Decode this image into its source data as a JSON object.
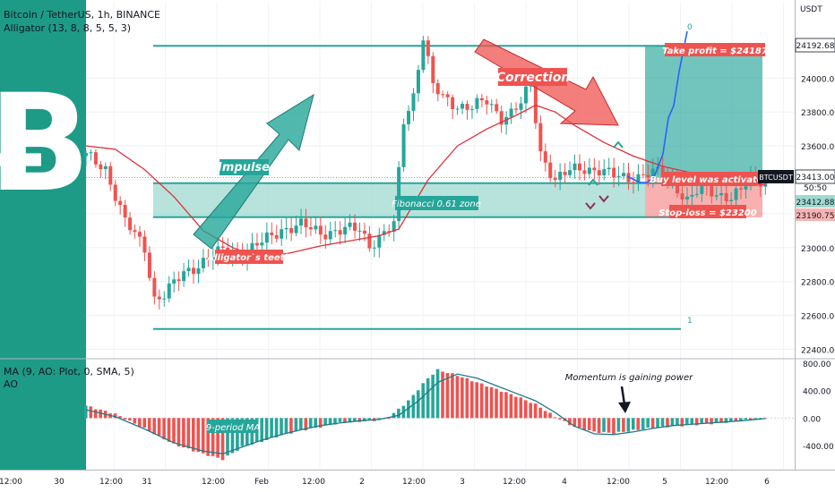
{
  "header": {
    "symbol_line": "Bitcoin / TetherUS, 1h, BINANCE",
    "indicator_line": "Alligator (13, 8, 8, 5, 5, 3)",
    "currency": "USDT"
  },
  "sub_header": {
    "line1": "MA (9, AO: Plot, 0, SMA, 5)",
    "line2": "AO"
  },
  "logo_text": "Bitcoin logo",
  "annotations": {
    "impulse": "Impulse",
    "correction": "Correction",
    "fib_zone": "Fibonacci 0.61 zone",
    "alligator_teeth": "Alligator`s teeth",
    "take_profit": "Take profit = $24187",
    "buy_level": "Buy level was activated",
    "stop_loss": "Stop-loss = $23200",
    "fib_top": "0",
    "fib_bottom": "1",
    "momentum": "Momentum is gaining power",
    "ma_label": "9-period MA"
  },
  "price_tags": {
    "top": "24192.68",
    "ticker": "BTCUSDT",
    "last": "23413.00",
    "countdown": "50:50",
    "entry": "23412.88",
    "stop": "23190.75"
  },
  "colors": {
    "teal": "#26a69a",
    "red": "#ef5350",
    "alligator": "#e0303a",
    "ma": "#1f7a8c",
    "zone": "#9fdad0"
  },
  "chart_data": [
    {
      "type": "candlestick",
      "title": "Bitcoin / TetherUS, 1h, BINANCE",
      "ylabel": "USDT",
      "ylim": [
        22350,
        24450
      ],
      "y_ticks": [
        22400,
        22600,
        22800,
        23000,
        23200,
        23400,
        23600,
        23800,
        24000
      ],
      "x_ticks": [
        "12:00",
        "30",
        "12:00",
        "31",
        "12:00",
        "Feb",
        "12:00",
        "2",
        "12:00",
        "3",
        "12:00",
        "4",
        "12:00",
        "5",
        "12:00",
        "6"
      ],
      "close_path": [
        [
          0,
          23540
        ],
        [
          4,
          23470
        ],
        [
          8,
          23150
        ],
        [
          12,
          23000
        ],
        [
          14,
          22700
        ],
        [
          16,
          22720
        ],
        [
          20,
          22850
        ],
        [
          24,
          22920
        ],
        [
          28,
          22980
        ],
        [
          32,
          22960
        ],
        [
          36,
          23030
        ],
        [
          40,
          23110
        ],
        [
          44,
          23130
        ],
        [
          48,
          23090
        ],
        [
          52,
          23100
        ],
        [
          56,
          23110
        ],
        [
          58,
          23020
        ],
        [
          60,
          23060
        ],
        [
          63,
          23130
        ],
        [
          65,
          23750
        ],
        [
          67,
          23900
        ],
        [
          69,
          24250
        ],
        [
          71,
          23950
        ],
        [
          73,
          23880
        ],
        [
          76,
          23840
        ],
        [
          79,
          23830
        ],
        [
          82,
          23860
        ],
        [
          85,
          23770
        ],
        [
          87,
          23800
        ],
        [
          89,
          23850
        ],
        [
          91,
          23960
        ],
        [
          93,
          23560
        ],
        [
          96,
          23400
        ],
        [
          99,
          23450
        ],
        [
          102,
          23470
        ],
        [
          105,
          23460
        ],
        [
          108,
          23420
        ],
        [
          111,
          23410
        ],
        [
          114,
          23430
        ],
        [
          117,
          23440
        ],
        [
          120,
          23390
        ],
        [
          123,
          23280
        ],
        [
          126,
          23350
        ],
        [
          129,
          23320
        ],
        [
          132,
          23300
        ],
        [
          134,
          23330
        ],
        [
          136,
          23410
        ],
        [
          138,
          23400
        ],
        [
          139,
          23390
        ]
      ],
      "alligator_teeth": [
        [
          0,
          23600
        ],
        [
          6,
          23580
        ],
        [
          12,
          23460
        ],
        [
          18,
          23300
        ],
        [
          24,
          23100
        ],
        [
          30,
          23000
        ],
        [
          36,
          22940
        ],
        [
          42,
          22970
        ],
        [
          48,
          23010
        ],
        [
          54,
          23040
        ],
        [
          60,
          23070
        ],
        [
          64,
          23110
        ],
        [
          70,
          23400
        ],
        [
          76,
          23600
        ],
        [
          82,
          23700
        ],
        [
          88,
          23780
        ],
        [
          92,
          23840
        ],
        [
          96,
          23800
        ],
        [
          100,
          23720
        ],
        [
          106,
          23620
        ],
        [
          112,
          23540
        ],
        [
          118,
          23480
        ],
        [
          124,
          23440
        ],
        [
          130,
          23410
        ],
        [
          136,
          23380
        ],
        [
          139,
          23370
        ]
      ],
      "fibonacci": {
        "level_0": 24190,
        "level_1": 22520,
        "zone_0_61": [
          23180,
          23380
        ]
      },
      "take_profit": 24187,
      "entry": 23413,
      "stop_loss": 23200
    },
    {
      "type": "bar",
      "title": "AO",
      "ylim": [
        -750,
        850
      ],
      "y_ticks": [
        -400,
        0,
        400,
        800
      ],
      "ao_path": [
        [
          0,
          180
        ],
        [
          6,
          60
        ],
        [
          12,
          -150
        ],
        [
          18,
          -380
        ],
        [
          24,
          -520
        ],
        [
          28,
          -600
        ],
        [
          32,
          -420
        ],
        [
          36,
          -340
        ],
        [
          40,
          -250
        ],
        [
          44,
          -180
        ],
        [
          48,
          -130
        ],
        [
          52,
          -70
        ],
        [
          56,
          -50
        ],
        [
          60,
          -30
        ],
        [
          62,
          10
        ],
        [
          66,
          250
        ],
        [
          70,
          580
        ],
        [
          72,
          700
        ],
        [
          76,
          620
        ],
        [
          80,
          520
        ],
        [
          84,
          420
        ],
        [
          88,
          320
        ],
        [
          92,
          200
        ],
        [
          96,
          20
        ],
        [
          100,
          -130
        ],
        [
          104,
          -200
        ],
        [
          108,
          -220
        ],
        [
          112,
          -180
        ],
        [
          116,
          -140
        ],
        [
          120,
          -120
        ],
        [
          126,
          -90
        ],
        [
          130,
          -70
        ],
        [
          134,
          -40
        ],
        [
          138,
          -10
        ],
        [
          139,
          0
        ]
      ],
      "ma_path": [
        [
          0,
          120
        ],
        [
          6,
          20
        ],
        [
          12,
          -160
        ],
        [
          18,
          -360
        ],
        [
          24,
          -480
        ],
        [
          28,
          -520
        ],
        [
          32,
          -420
        ],
        [
          36,
          -320
        ],
        [
          40,
          -240
        ],
        [
          44,
          -170
        ],
        [
          48,
          -110
        ],
        [
          52,
          -70
        ],
        [
          56,
          -40
        ],
        [
          60,
          -20
        ],
        [
          64,
          40
        ],
        [
          68,
          250
        ],
        [
          72,
          520
        ],
        [
          76,
          640
        ],
        [
          80,
          580
        ],
        [
          84,
          470
        ],
        [
          88,
          360
        ],
        [
          92,
          250
        ],
        [
          96,
          80
        ],
        [
          100,
          -120
        ],
        [
          104,
          -230
        ],
        [
          108,
          -240
        ],
        [
          112,
          -200
        ],
        [
          116,
          -150
        ],
        [
          120,
          -110
        ],
        [
          126,
          -80
        ],
        [
          130,
          -60
        ],
        [
          134,
          -40
        ],
        [
          138,
          -15
        ],
        [
          139,
          -5
        ]
      ]
    }
  ]
}
